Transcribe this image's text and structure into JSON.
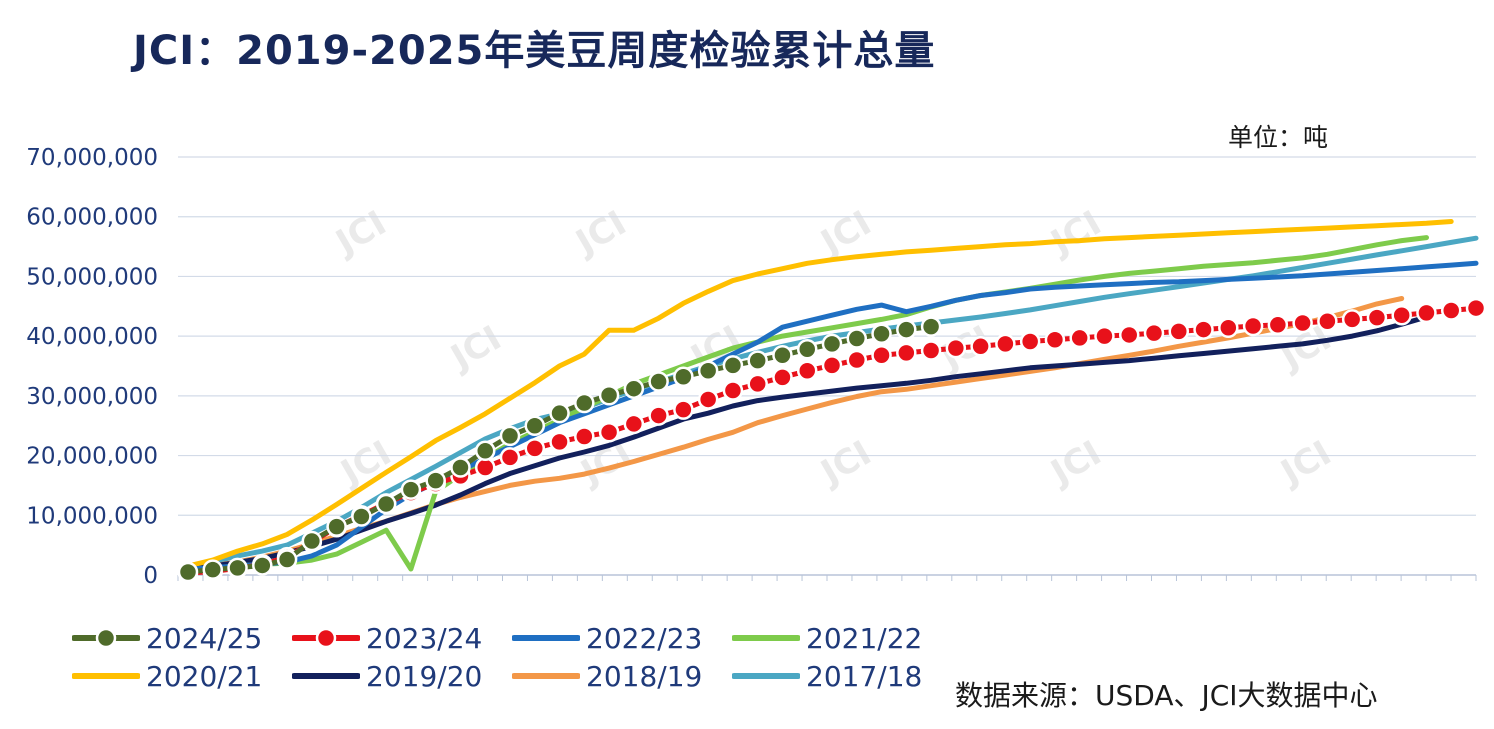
{
  "title": "JCI：2019-2025年美豆周度检验累计总量",
  "unit": "单位：吨",
  "source": "数据来源：USDA、JCI大数据中心",
  "watermark": "JCI",
  "chart_data": {
    "type": "line",
    "title": "JCI：2019-2025年美豆周度检验累计总量",
    "ylabel": "",
    "xlabel": "",
    "ylim": [
      0,
      70000000
    ],
    "yticks": [
      0,
      10000000,
      20000000,
      30000000,
      40000000,
      50000000,
      60000000,
      70000000
    ],
    "ytick_labels": [
      "0",
      "10,000,000",
      "20,000,000",
      "30,000,000",
      "40,000,000",
      "50,000,000",
      "60,000,000",
      "70,000,000"
    ],
    "x_weeks": 53,
    "grid": true,
    "legend_position": "bottom",
    "series": [
      {
        "name": "2024/25",
        "color": "#4f6b2a",
        "marker": "dot",
        "values": [
          500000,
          900000,
          1200000,
          1600000,
          2600000,
          5700000,
          8100000,
          9800000,
          11900000,
          14300000,
          15800000,
          18000000,
          20800000,
          23300000,
          25000000,
          27100000,
          28800000,
          30100000,
          31200000,
          32400000,
          33200000,
          34200000,
          35100000,
          35900000,
          36800000,
          37800000,
          38700000,
          39600000,
          40400000,
          41100000,
          41600000
        ]
      },
      {
        "name": "2023/24",
        "color": "#e8111a",
        "marker": "dot",
        "values": [
          300000,
          600000,
          1100000,
          1800000,
          3000000,
          5500000,
          8000000,
          10000000,
          12000000,
          13800000,
          15300000,
          16600000,
          18000000,
          19700000,
          21200000,
          22300000,
          23200000,
          23900000,
          25300000,
          26700000,
          27700000,
          29400000,
          30900000,
          32000000,
          33100000,
          34200000,
          35100000,
          36000000,
          36800000,
          37200000,
          37600000,
          38000000,
          38300000,
          38700000,
          39100000,
          39400000,
          39700000,
          40000000,
          40200000,
          40500000,
          40800000,
          41100000,
          41400000,
          41700000,
          41900000,
          42200000,
          42500000,
          42800000,
          43100000,
          43500000,
          43900000,
          44300000,
          44700000
        ]
      },
      {
        "name": "2022/23",
        "color": "#1f6fc2",
        "values": [
          1000000,
          1200000,
          1500000,
          1800000,
          2200000,
          3200000,
          5000000,
          8000000,
          11000000,
          13500000,
          15500000,
          17500000,
          19500000,
          21500000,
          23500000,
          25500000,
          27000000,
          28500000,
          30000000,
          31500000,
          33000000,
          35000000,
          37000000,
          39000000,
          41500000,
          42500000,
          43500000,
          44500000,
          45200000,
          44100000,
          45000000,
          46000000,
          46800000,
          47300000,
          47900000,
          48200000,
          48400000,
          48600000,
          48800000,
          49000000,
          49100000,
          49300000,
          49500000,
          49700000,
          49900000,
          50100000,
          50400000,
          50700000,
          51000000,
          51300000,
          51600000,
          51900000,
          52200000
        ]
      },
      {
        "name": "2021/22",
        "color": "#7ecb4b",
        "values": [
          900000,
          1200000,
          1500000,
          1800000,
          2000000,
          2500000,
          3500000,
          5500000,
          7500000,
          1000000,
          14000000,
          16800000,
          19500000,
          22000000,
          24000000,
          26000000,
          28000000,
          30000000,
          32000000,
          33500000,
          35000000,
          36500000,
          38000000,
          39000000,
          40000000,
          40700000,
          41400000,
          42100000,
          42800000,
          43600000,
          44900000,
          46000000,
          46800000,
          47400000,
          48000000,
          48700000,
          49400000,
          50000000,
          50500000,
          50900000,
          51300000,
          51700000,
          52000000,
          52300000,
          52700000,
          53100000,
          53700000,
          54500000,
          55300000,
          56000000,
          56500000
        ]
      },
      {
        "name": "2020/21",
        "color": "#ffbf00",
        "values": [
          1500000,
          2500000,
          4000000,
          5200000,
          6800000,
          9200000,
          11800000,
          14500000,
          17200000,
          19800000,
          22500000,
          24700000,
          27000000,
          29600000,
          32200000,
          35000000,
          37000000,
          41000000,
          41000000,
          43000000,
          45500000,
          47500000,
          49300000,
          50400000,
          51300000,
          52200000,
          52800000,
          53300000,
          53700000,
          54100000,
          54400000,
          54700000,
          55000000,
          55300000,
          55500000,
          55800000,
          56000000,
          56300000,
          56500000,
          56700000,
          56900000,
          57100000,
          57300000,
          57500000,
          57700000,
          57900000,
          58100000,
          58300000,
          58500000,
          58700000,
          58900000,
          59200000
        ]
      },
      {
        "name": "2019/20",
        "color": "#12205c",
        "values": [
          1000000,
          1500000,
          2100000,
          2800000,
          3700000,
          4800000,
          6000000,
          7500000,
          9000000,
          10300000,
          11700000,
          13400000,
          15300000,
          17000000,
          18300000,
          19600000,
          20600000,
          21700000,
          23100000,
          24600000,
          26100000,
          27100000,
          28300000,
          29200000,
          29800000,
          30300000,
          30800000,
          31300000,
          31700000,
          32100000,
          32600000,
          33200000,
          33700000,
          34200000,
          34700000,
          35000000,
          35300000,
          35600000,
          35900000,
          36300000,
          36700000,
          37100000,
          37500000,
          37900000,
          38300000,
          38700000,
          39300000,
          40000000,
          40900000,
          42000000,
          43200000
        ]
      },
      {
        "name": "2018/19",
        "color": "#f39747",
        "values": [
          1000000,
          1500000,
          2200000,
          3000000,
          4000000,
          5200000,
          6500000,
          7800000,
          9000000,
          10400000,
          11800000,
          13000000,
          14000000,
          15000000,
          15700000,
          16200000,
          16900000,
          17900000,
          19000000,
          20200000,
          21400000,
          22700000,
          23900000,
          25500000,
          26700000,
          27800000,
          28900000,
          29900000,
          30700000,
          31100000,
          31700000,
          32300000,
          32900000,
          33500000,
          34100000,
          34700000,
          35400000,
          36100000,
          36800000,
          37500000,
          38300000,
          39000000,
          39700000,
          40500000,
          41300000,
          42100000,
          43100000,
          44200000,
          45400000,
          46300000
        ]
      },
      {
        "name": "2017/18",
        "color": "#4ba7c3",
        "values": [
          1000000,
          2200000,
          3200000,
          4000000,
          5000000,
          7000000,
          9000000,
          11300000,
          13800000,
          16000000,
          18200000,
          20500000,
          22800000,
          24500000,
          26000000,
          27000000,
          28000000,
          29500000,
          31000000,
          32300000,
          33700000,
          35000000,
          36200000,
          37300000,
          38300000,
          39200000,
          40000000,
          40600000,
          41200000,
          41700000,
          42200000,
          42700000,
          43200000,
          43800000,
          44400000,
          45100000,
          45800000,
          46500000,
          47100000,
          47700000,
          48300000,
          48900000,
          49500000,
          50100000,
          50800000,
          51500000,
          52200000,
          52900000,
          53600000,
          54300000,
          55000000,
          55700000,
          56400000
        ]
      }
    ]
  },
  "legend": [
    {
      "label": "2024/25",
      "color": "#4f6b2a",
      "marker": "dot",
      "marker_fill": "#4f6b2a"
    },
    {
      "label": "2023/24",
      "color": "#e8111a",
      "marker": "dot",
      "marker_fill": "#e8111a"
    },
    {
      "label": "2022/23",
      "color": "#1f6fc2"
    },
    {
      "label": "2021/22",
      "color": "#7ecb4b"
    },
    {
      "label": "2020/21",
      "color": "#ffbf00"
    },
    {
      "label": "2019/20",
      "color": "#12205c"
    },
    {
      "label": "2018/19",
      "color": "#f39747"
    },
    {
      "label": "2017/18",
      "color": "#4ba7c3"
    }
  ]
}
